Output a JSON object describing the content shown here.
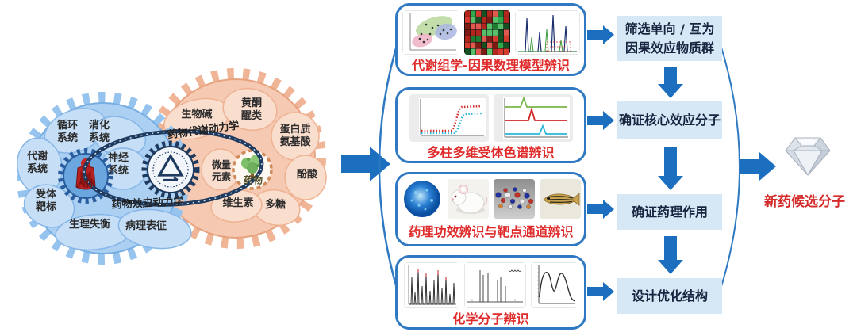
{
  "colors": {
    "arrow_blue": "#1b6fbe",
    "panel_border_blue": "#2e79c2",
    "flow_box_bg": "#d6e8f6",
    "flow_box_text": "#18243f",
    "caption_red": "#e02b2b",
    "result_red": "#d42a2a",
    "blue_gear_fill": "#abd0f2",
    "orange_gear_fill": "#f5c9b2",
    "chain_navy": "#1e3a5e"
  },
  "left_diagram": {
    "blue_gear": {
      "center_label": "人体",
      "labels": [
        "循环\n系统",
        "消化\n系统",
        "代谢\n系统",
        "神经\n系统",
        "受体\n靶标",
        "生理失衡",
        "病理表征"
      ]
    },
    "orange_gear": {
      "center_label": "药物",
      "labels": [
        "生物碱",
        "黄酮\n醌类",
        "蛋白质\n氨基酸",
        "酚酸",
        "多糖",
        "维生素",
        "微量\n元素"
      ]
    },
    "chain": {
      "top_label": "药物代谢动力学",
      "bottom_label": "药物效应动力学"
    }
  },
  "panels": [
    {
      "caption": "代谢组学-因果数理模型辨识"
    },
    {
      "caption": "多柱多维受体色谱辨识"
    },
    {
      "caption": "药理功效辨识与靶点通道辨识"
    },
    {
      "caption": "化学分子辨识"
    }
  ],
  "flow_boxes": [
    {
      "text": "筛选单向 / 互为\n因果效应物质群"
    },
    {
      "text": "确证核心效应分子"
    },
    {
      "text": "确证药理作用"
    },
    {
      "text": "设计优化结构"
    }
  ],
  "result": {
    "label": "新药候选分子"
  }
}
